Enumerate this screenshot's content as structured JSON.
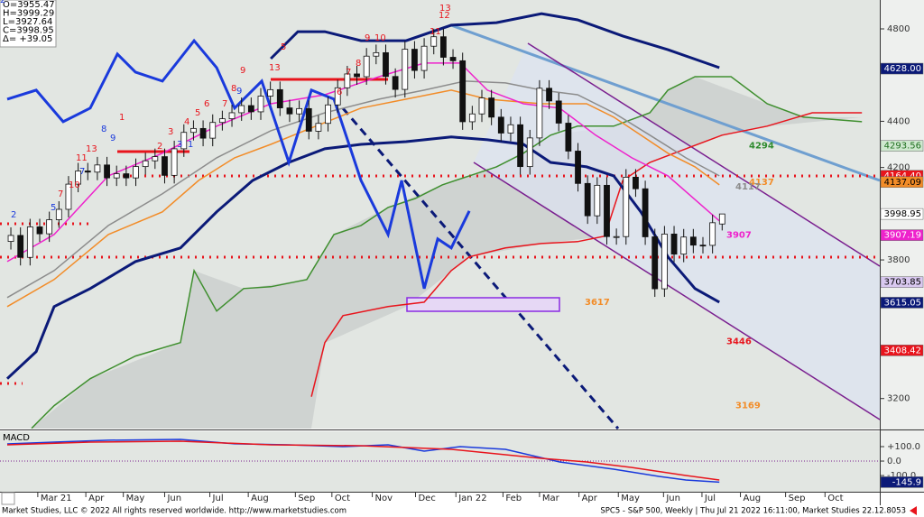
{
  "ohlc_box": [
    "O=3955.47",
    "H=3999.29",
    "L=3927.64",
    "C=3998.95",
    "Δ= +39.05"
  ],
  "chart_data": [
    {
      "type": "candlestick",
      "xlim": [
        -1.13,
        90.4
      ],
      "ylim": [
        3070,
        4925
      ],
      "yticks": [
        3200,
        3800,
        4200,
        4400,
        4800
      ],
      "xticks": [
        {
          "value": 2.8,
          "label": "Mar 21"
        },
        {
          "value": 7.8,
          "label": "Apr"
        },
        {
          "value": 11.7,
          "label": "May"
        },
        {
          "value": 16,
          "label": "Jun"
        },
        {
          "value": 20.7,
          "label": "Jul"
        },
        {
          "value": 24.7,
          "label": "Aug"
        },
        {
          "value": 29.6,
          "label": "Sep"
        },
        {
          "value": 33.4,
          "label": "Oct"
        },
        {
          "value": 37.6,
          "label": "Nov"
        },
        {
          "value": 42.1,
          "label": "Dec"
        },
        {
          "value": 46.3,
          "label": "Jan 22"
        },
        {
          "value": 51.2,
          "label": "Feb"
        },
        {
          "value": 55,
          "label": "Mar"
        },
        {
          "value": 59.1,
          "label": "Apr"
        },
        {
          "value": 63.2,
          "label": "May"
        },
        {
          "value": 67.9,
          "label": "Jun"
        },
        {
          "value": 71.9,
          "label": "Jul"
        },
        {
          "value": 75.9,
          "label": "Aug"
        },
        {
          "value": 80.6,
          "label": "Sep"
        },
        {
          "value": 84.7,
          "label": "Oct"
        }
      ],
      "open": [
        3880,
        3906,
        3811,
        3943,
        3913,
        3974,
        4019,
        4128,
        4185,
        4180,
        4211,
        4155,
        4173,
        4155,
        4204,
        4229,
        4247,
        4166,
        4281,
        4352,
        4369,
        4327,
        4395,
        4411,
        4437,
        4468,
        4441,
        4509,
        4537,
        4458,
        4432,
        4455,
        4357,
        4391,
        4471,
        4545,
        4605,
        4593,
        4682,
        4697,
        4594,
        4538,
        4712,
        4620,
        4725,
        4766,
        4677,
        4662,
        4398,
        4432,
        4501,
        4418,
        4349,
        4385,
        4204,
        4328,
        4543,
        4488,
        4392,
        4271,
        4131,
        3991,
        4123,
        3901,
        3901,
        4158,
        4108,
        3900,
        3675,
        3912,
        3825,
        3899,
        3864,
        3863,
        3955.47
      ],
      "high": [
        3941,
        3941,
        3978,
        3978,
        4009,
        4054,
        4163,
        4220,
        4220,
        4246,
        4246,
        4208,
        4208,
        4239,
        4264,
        4282,
        4282,
        4316,
        4387,
        4404,
        4404,
        4430,
        4446,
        4472,
        4503,
        4503,
        4544,
        4572,
        4572,
        4493,
        4490,
        4490,
        4426,
        4506,
        4580,
        4640,
        4640,
        4717,
        4732,
        4732,
        4629,
        4747,
        4747,
        4760,
        4801,
        4801,
        4712,
        4697,
        4467,
        4536,
        4536,
        4453,
        4420,
        4420,
        4363,
        4578,
        4578,
        4523,
        4427,
        4306,
        4166,
        4158,
        4158,
        3936,
        4193,
        4193,
        4143,
        3935,
        3947,
        3947,
        3934,
        3934,
        3899,
        3996,
        3999.29
      ],
      "low": [
        3845,
        3776,
        3776,
        3878,
        3878,
        3939,
        3984,
        4093,
        4145,
        4145,
        4120,
        4120,
        4120,
        4120,
        4169,
        4194,
        4131,
        4131,
        4246,
        4317,
        4292,
        4292,
        4360,
        4376,
        4402,
        4406,
        4406,
        4474,
        4423,
        4397,
        4397,
        4322,
        4322,
        4356,
        4436,
        4510,
        4558,
        4558,
        4647,
        4559,
        4503,
        4503,
        4585,
        4585,
        4690,
        4642,
        4627,
        4363,
        4363,
        4397,
        4383,
        4314,
        4314,
        4169,
        4169,
        4293,
        4453,
        4357,
        4236,
        4096,
        3956,
        3956,
        3866,
        3866,
        3866,
        4073,
        3865,
        3640,
        3640,
        3790,
        3790,
        3829,
        3828,
        3828,
        3927.64
      ],
      "close": [
        3906,
        3811,
        3943,
        3913,
        3974,
        4019,
        4128,
        4185,
        4180,
        4211,
        4155,
        4173,
        4155,
        4204,
        4229,
        4247,
        4166,
        4281,
        4352,
        4369,
        4327,
        4395,
        4411,
        4437,
        4468,
        4441,
        4509,
        4537,
        4458,
        4432,
        4455,
        4357,
        4391,
        4471,
        4545,
        4605,
        4593,
        4682,
        4697,
        4594,
        4538,
        4712,
        4620,
        4725,
        4766,
        4677,
        4662,
        4398,
        4432,
        4501,
        4418,
        4349,
        4385,
        4204,
        4328,
        4543,
        4488,
        4392,
        4271,
        4131,
        3991,
        4123,
        3901,
        3901,
        4158,
        4108,
        3900,
        3675,
        3912,
        3825,
        3899,
        3864,
        3863,
        3961,
        3998.95
      ],
      "series": [
        {
          "color": "#3f8f2f",
          "x": [
            2.16,
            4.5,
            8.26,
            12.96,
            17.65,
            19.06,
            21.41,
            24.22,
            27.04,
            30.79,
            33.61,
            36.43,
            39.25,
            42.06,
            44.88,
            47.7,
            50.52,
            53.33,
            56.15,
            58.96,
            62.72,
            66.48,
            68.36,
            71.17,
            74.93,
            78.68,
            82.44,
            88.54
          ],
          "values": [
            3071,
            3169,
            3286,
            3384,
            3442,
            3754,
            3579,
            3676,
            3684,
            3715,
            3910,
            3949,
            4027,
            4066,
            4125,
            4164,
            4203,
            4262,
            4340,
            4379,
            4379,
            4437,
            4535,
            4593,
            4593,
            4476,
            4418,
            4398
          ]
        },
        {
          "color": "#e8141c",
          "x": [
            31.27,
            32.67,
            34.55,
            39.25,
            43.0,
            45.82,
            47.7,
            51.45,
            55.21,
            58.96,
            61.78,
            63.66,
            66.48,
            70.23,
            73.99,
            78.68,
            83.38,
            88.54
          ],
          "values": [
            3208,
            3442,
            3559,
            3598,
            3617,
            3754,
            3813,
            3852,
            3871,
            3879,
            3903,
            4144,
            4222,
            4281,
            4340,
            4379,
            4437,
            4437
          ]
        },
        {
          "color": "#8c8c8c",
          "x": [
            -0.38,
            4.5,
            10.14,
            15.77,
            21.41,
            27.04,
            32.67,
            38.31,
            43.0,
            47.23,
            51.45,
            55.21,
            58.96,
            62.72,
            66.48,
            70.23,
            73.71
          ],
          "values": [
            3637,
            3754,
            3949,
            4086,
            4242,
            4359,
            4437,
            4496,
            4535,
            4574,
            4566,
            4535,
            4515,
            4437,
            4340,
            4242,
            4164
          ]
        },
        {
          "color": "#f28c28",
          "x": [
            -0.38,
            4.5,
            10.14,
            15.77,
            19.53,
            23.28,
            27.04,
            31.73,
            36.43,
            41.12,
            45.82,
            49.57,
            55.21,
            59.9,
            62.72,
            65.54,
            68.36,
            71.17,
            73.71
          ],
          "values": [
            3598,
            3715,
            3910,
            4008,
            4144,
            4242,
            4300,
            4379,
            4457,
            4496,
            4535,
            4496,
            4476,
            4476,
            4418,
            4340,
            4262,
            4203,
            4125
          ]
        },
        {
          "color": "#ee22cc",
          "x": [
            -0.38,
            4.5,
            10.14,
            15.77,
            21.41,
            27.04,
            32.67,
            38.31,
            43.0,
            46.76,
            49.57,
            53.33,
            57.09,
            60.84,
            64.6,
            68.36,
            72.11,
            73.71
          ],
          "values": [
            3793,
            3910,
            4164,
            4262,
            4379,
            4476,
            4515,
            4593,
            4652,
            4652,
            4535,
            4476,
            4457,
            4340,
            4242,
            4164,
            4027,
            3969
          ]
        },
        {
          "color": "#0b1a78",
          "x": [
            -0.38,
            2.63,
            4.5,
            8.26,
            12.96,
            17.65,
            21.41,
            25.16,
            28.92,
            32.67,
            36.43,
            41.12,
            45.82,
            49.57,
            53.33,
            56.15,
            59.9,
            62.72,
            65.54,
            68.36,
            71.17,
            73.71
          ],
          "values": [
            3286,
            3403,
            3598,
            3676,
            3793,
            3852,
            4008,
            4144,
            4222,
            4281,
            4300,
            4312,
            4332,
            4320,
            4300,
            4222,
            4203,
            4164,
            4008,
            3813,
            3676,
            3617
          ]
        },
        {
          "color": "#0b1a78",
          "x": [
            27.04,
            29.86,
            32.67,
            36.43,
            41.12,
            45.82,
            50.52,
            55.21,
            58.96,
            63.66,
            68.36,
            73.71
          ],
          "values": [
            4671,
            4788,
            4788,
            4749,
            4749,
            4816,
            4827,
            4866,
            4839,
            4769,
            4710,
            4632
          ]
        },
        {
          "color": "#1a3adc",
          "x": [
            -0.38,
            2.63,
            5.44,
            8.26,
            11.08,
            12.96,
            15.77,
            19.06,
            21.41,
            23.28,
            26.1,
            28.92,
            31.27,
            33.61,
            36.43,
            39.25,
            40.65,
            43.0,
            44.41,
            45.82,
            47.7
          ],
          "values": [
            4496,
            4535,
            4398,
            4457,
            4691,
            4613,
            4574,
            4749,
            4632,
            4457,
            4574,
            4222,
            4535,
            4496,
            4144,
            3910,
            4144,
            3676,
            3891,
            3852,
            4012
          ]
        }
      ],
      "price_boxes": [
        {
          "value": 4628,
          "label": "4628.00",
          "color": "#0b1a78",
          "text_color": "#ffffff"
        },
        {
          "value": 4293.56,
          "color": "#cfe8cf",
          "text_color": "#1f6f1f"
        },
        {
          "value": 4164.4,
          "label": "4164.40",
          "color": "#e8141c",
          "text_color": "#ffffff"
        },
        {
          "value": 4137.09,
          "color": "#f28c28",
          "text_color": "#000000"
        },
        {
          "value": 3998.95,
          "color": "#ffffff",
          "text_color": "#000000"
        },
        {
          "value": 3907.19,
          "color": "#ee22cc",
          "text_color": "#ffffff"
        },
        {
          "value": 3703.85,
          "color": "#d9c8f0",
          "text_color": "#000000"
        },
        {
          "value": 3615.05,
          "color": "#0b1a78",
          "text_color": "#ffffff"
        },
        {
          "value": 3408.42,
          "color": "#e8141c",
          "text_color": "#ffffff"
        }
      ],
      "annotations": [
        {
          "value": 4294,
          "color": "#2e8b2e"
        },
        {
          "value": 4137,
          "color": "#f28c28"
        },
        {
          "value": 4117,
          "color": "#8c8c8c"
        },
        {
          "value": 3907,
          "color": "#ee22cc"
        },
        {
          "value": 3617,
          "color": "#f28c28"
        },
        {
          "value": 3446,
          "color": "#e8141c"
        },
        {
          "value": 3169,
          "color": "#f28c28"
        }
      ],
      "counts": [
        {
          "text": "13",
          "color": "#e8141c"
        },
        {
          "text": "13",
          "color": "#e8141c"
        },
        {
          "text": "13",
          "color": "#e8141c"
        },
        {
          "text": "9",
          "color": "#1a3adc"
        },
        {
          "text": "9",
          "color": "#1a3adc"
        },
        {
          "text": "12",
          "color": "#e8141c"
        },
        {
          "text": "11",
          "color": "#e8141c"
        },
        {
          "text": "9",
          "color": "#e8141c"
        },
        {
          "text": "10",
          "color": "#e8141c"
        },
        {
          "text": "8",
          "color": "#e8141c"
        },
        {
          "text": "7",
          "color": "#e8141c"
        },
        {
          "text": "6",
          "color": "#e8141c"
        },
        {
          "text": "5",
          "color": "#e8141c"
        },
        {
          "text": "9",
          "color": "#e8141c"
        },
        {
          "text": "8",
          "color": "#e8141c"
        },
        {
          "text": "7",
          "color": "#e8141c"
        },
        {
          "text": "6",
          "color": "#e8141c"
        },
        {
          "text": "5",
          "color": "#e8141c"
        },
        {
          "text": "4",
          "color": "#e8141c"
        },
        {
          "text": "3",
          "color": "#e8141c"
        },
        {
          "text": "2",
          "color": "#e8141c"
        },
        {
          "text": "1",
          "color": "#e8141c"
        },
        {
          "text": "11",
          "color": "#e8141c"
        },
        {
          "text": "10",
          "color": "#e8141c"
        },
        {
          "text": "7",
          "color": "#e8141c"
        },
        {
          "text": "8",
          "color": "#1a3adc"
        },
        {
          "text": "7",
          "color": "#1a3adc"
        },
        {
          "text": "5",
          "color": "#1a3adc"
        },
        {
          "text": "3",
          "color": "#1a3adc"
        },
        {
          "text": "2",
          "color": "#1a3adc"
        },
        {
          "text": "1",
          "color": "#1a3adc"
        },
        {
          "text": "2",
          "color": "#1a3adc"
        }
      ]
    },
    {
      "type": "line",
      "title": "MACD",
      "xlim": [
        -1.13,
        90.4
      ],
      "ylim": [
        -212,
        206
      ],
      "yticks": [
        {
          "value": 100,
          "label": "+100.0"
        },
        {
          "value": 0,
          "label": "0.0"
        },
        {
          "value": -100,
          "label": "-100.0"
        }
      ],
      "series": [
        {
          "color": "#1a3adc",
          "x": [
            -0.38,
            4.5,
            10.14,
            17.65,
            23.28,
            28.92,
            34.55,
            39.25,
            43.0,
            46.76,
            51.45,
            57.09,
            62.72,
            67.42,
            70.23,
            73.71
          ],
          "values": [
            118.8,
            131,
            144,
            150,
            119,
            112.5,
            100,
            112.5,
            69,
            100,
            81,
            -6,
            -56,
            -106,
            -131,
            -146
          ]
        },
        {
          "color": "#e8141c",
          "x": [
            -0.38,
            8.26,
            17.65,
            27.04,
            36.43,
            45.82,
            55.21,
            59.9,
            64.6,
            70.23,
            73.71
          ],
          "values": [
            112.5,
            131,
            137.5,
            112.5,
            106,
            81,
            19,
            -6,
            -44,
            -100,
            -131
          ]
        }
      ],
      "price_boxes": [
        {
          "value": -145.9,
          "color": "#0b1a78",
          "text_color": "#ffffff"
        }
      ]
    }
  ],
  "footer": {
    "left": "Market Studies, LLC © 2022 All rights reserved worldwide. http://www.marketstudies.com",
    "right": "SPC5 - S&P 500, Weekly | Thu Jul 21 2022 16:11:00, Market Studies 22.12.8053"
  }
}
